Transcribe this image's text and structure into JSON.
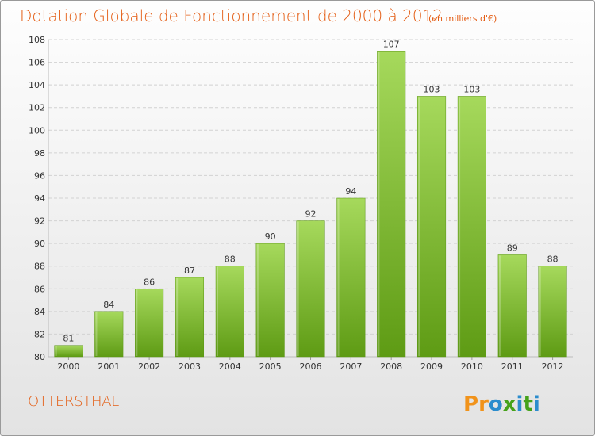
{
  "header": {
    "title": "Dotation Globale de Fonctionnement de 2000 à 2012",
    "units": "(en milliers d'€)"
  },
  "footer": {
    "commune": "OTTERSTHAL",
    "logo_text": "Proxiti"
  },
  "colors": {
    "title": "#e45d14",
    "bar_top": "#a6d95c",
    "bar_bottom": "#5e9b14",
    "logo_letters": [
      "#f1931b",
      "#f1931b",
      "#2b8ccd",
      "#46a21a",
      "#2b8ccd",
      "#46a21a",
      "#2b8ccd"
    ]
  },
  "chart_data": {
    "type": "bar",
    "categories": [
      "2000",
      "2001",
      "2002",
      "2003",
      "2004",
      "2005",
      "2006",
      "2007",
      "2008",
      "2009",
      "2010",
      "2011",
      "2012"
    ],
    "values": [
      81,
      84,
      86,
      87,
      88,
      90,
      92,
      94,
      107,
      103,
      103,
      89,
      88
    ],
    "ylim": [
      80,
      108
    ],
    "yticks": [
      80,
      82,
      84,
      86,
      88,
      90,
      92,
      94,
      96,
      98,
      100,
      102,
      104,
      106,
      108
    ],
    "grid": "horizontal",
    "data_labels": true
  }
}
